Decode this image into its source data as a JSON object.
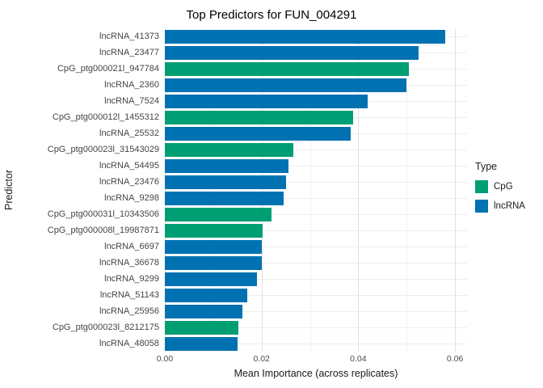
{
  "title": "Top Predictors for FUN_004291",
  "axes": {
    "x_label": "Mean Importance (across replicates)",
    "y_label": "Predictor",
    "x_ticks": [
      {
        "label": "0.00",
        "value": 0.0
      },
      {
        "label": "0.02",
        "value": 0.02
      },
      {
        "label": "0.04",
        "value": 0.04
      },
      {
        "label": "0.06",
        "value": 0.06
      }
    ]
  },
  "legend": {
    "title": "Type",
    "items": [
      {
        "label": "CpG",
        "color": "#009E73"
      },
      {
        "label": "lncRNA",
        "color": "#0072B2"
      }
    ]
  },
  "chart_data": {
    "type": "bar",
    "orientation": "horizontal",
    "title": "Top Predictors for FUN_004291",
    "xlabel": "Mean Importance (across replicates)",
    "ylabel": "Predictor",
    "xlim": [
      0,
      0.06
    ],
    "grid": true,
    "legend_title": "Type",
    "legend_position": "right",
    "colors": {
      "CpG": "#009E73",
      "lncRNA": "#0072B2"
    },
    "bars": [
      {
        "category": "lncRNA_41373",
        "type": "lncRNA",
        "value": 0.058
      },
      {
        "category": "lncRNA_23477",
        "type": "lncRNA",
        "value": 0.0525
      },
      {
        "category": "CpG_ptg000021l_947784",
        "type": "CpG",
        "value": 0.0505
      },
      {
        "category": "lncRNA_2360",
        "type": "lncRNA",
        "value": 0.05
      },
      {
        "category": "lncRNA_7524",
        "type": "lncRNA",
        "value": 0.042
      },
      {
        "category": "CpG_ptg000012l_1455312",
        "type": "CpG",
        "value": 0.039
      },
      {
        "category": "lncRNA_25532",
        "type": "lncRNA",
        "value": 0.0385
      },
      {
        "category": "CpG_ptg000023l_31543029",
        "type": "CpG",
        "value": 0.0265
      },
      {
        "category": "lncRNA_54495",
        "type": "lncRNA",
        "value": 0.0255
      },
      {
        "category": "lncRNA_23476",
        "type": "lncRNA",
        "value": 0.025
      },
      {
        "category": "lncRNA_9298",
        "type": "lncRNA",
        "value": 0.0245
      },
      {
        "category": "CpG_ptg000031l_10343506",
        "type": "CpG",
        "value": 0.022
      },
      {
        "category": "CpG_ptg000008l_19987871",
        "type": "CpG",
        "value": 0.0202
      },
      {
        "category": "lncRNA_6697",
        "type": "lncRNA",
        "value": 0.02
      },
      {
        "category": "lncRNA_36678",
        "type": "lncRNA",
        "value": 0.02
      },
      {
        "category": "lncRNA_9299",
        "type": "lncRNA",
        "value": 0.019
      },
      {
        "category": "lncRNA_51143",
        "type": "lncRNA",
        "value": 0.017
      },
      {
        "category": "lncRNA_25956",
        "type": "lncRNA",
        "value": 0.016
      },
      {
        "category": "CpG_ptg000023l_8212175",
        "type": "CpG",
        "value": 0.0152
      },
      {
        "category": "lncRNA_48058",
        "type": "lncRNA",
        "value": 0.015
      }
    ]
  }
}
